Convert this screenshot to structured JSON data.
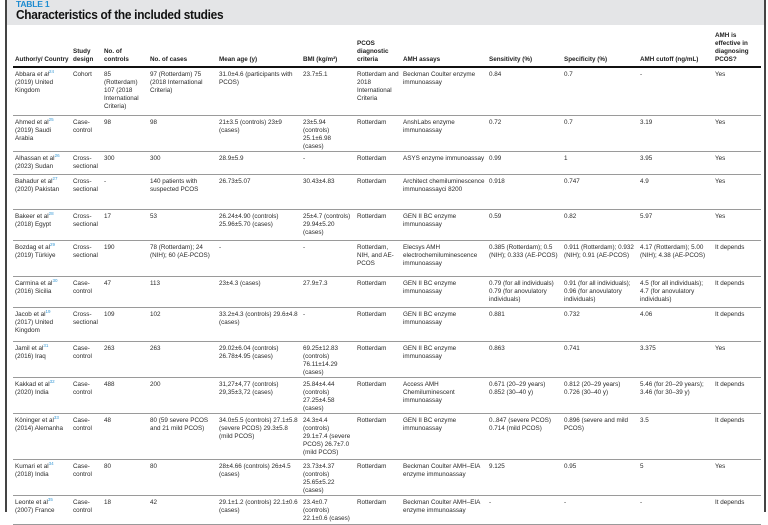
{
  "table_label": "TABLE 1",
  "title": "Characteristics of the included studies",
  "accent_color": "#1d8bd0",
  "columns": [
    "Author/y/ Country",
    "Study design",
    "No. of controls",
    "No. of cases",
    "Mean age (y)",
    "BMI (kg/m²)",
    "PCOS diagnostic criteria",
    "AMH assays",
    "Sensitivity (%)",
    "Specificity (%)",
    "AMH cutoff (ng/mL)",
    "AMH is effective in diagnosing PCOS?"
  ],
  "rows": [
    {
      "author": "Abbara",
      "etal": "et al",
      "ref": "24",
      "place": "(2019) United Kingdom",
      "design": "Cohort",
      "controls": "85 (Rotterdam) 107 (2018 International Criteria)",
      "cases": "97 (Rotterdam) 75 (2018 International Criteria)",
      "age": "31.0±4.6 (participants with PCOS)",
      "bmi": "23.7±5.1",
      "criteria": "Rotterdam and 2018 International Criteria",
      "assay": "Beckman Coulter enzyme immunoassay",
      "sens": "0.84",
      "spec": "0.7",
      "cutoff": "-",
      "effective": "Yes"
    },
    {
      "author": "Ahmed",
      "etal": "et al",
      "ref": "25",
      "place": "(2019) Saudi Arabia",
      "design": "Case-control",
      "controls": "98",
      "cases": "98",
      "age": "21±3.5 (controls) 23±9 (cases)",
      "bmi": "23±5.94 (controls) 25.1±6.98 (cases)",
      "criteria": "Rotterdam",
      "assay": "AnshLabs enzyme immunoassay",
      "sens": "0.72",
      "spec": "0.7",
      "cutoff": "3.19",
      "effective": "Yes"
    },
    {
      "author": "Alhassan",
      "etal": "et al",
      "ref": "26",
      "place": "(2023) Sudan",
      "design": "Cross-sectional",
      "controls": "300",
      "cases": "300",
      "age": "28.9±5.9",
      "bmi": "-",
      "criteria": "Rotterdam",
      "assay": "ASYS enzyme immunoassay",
      "sens": "0.99",
      "spec": "1",
      "cutoff": "3.95",
      "effective": "Yes"
    },
    {
      "author": "Bahadur",
      "etal": "et al",
      "ref": "27",
      "place": "(2020) Pakistan",
      "design": "Cross-sectional",
      "controls": "-",
      "cases": "140 patients with suspected PCOS",
      "age": "26.73±5.07",
      "bmi": "30.43±4.83",
      "criteria": "Rotterdam",
      "assay": "Architect chemiluminescence immunoassayci 8200",
      "sens": "0.918",
      "spec": "0.747",
      "cutoff": "4.9",
      "effective": "Yes"
    },
    {
      "author": "Bakeer",
      "etal": "et al",
      "ref": "28",
      "place": "(2018) Egypt",
      "design": "Cross-sectional",
      "controls": "17",
      "cases": "53",
      "age": "26.24±4.90 (controls) 25.96±5.70 (cases)",
      "bmi": "25±4.7 (controls) 29.94±5.20 (cases)",
      "criteria": "Rotterdam",
      "assay": "GEN II BC enzyme immunoassay",
      "sens": "0.59",
      "spec": "0.82",
      "cutoff": "5.97",
      "effective": "Yes"
    },
    {
      "author": "Bozdag",
      "etal": "et al",
      "ref": "29",
      "place": "(2019) Türkiye",
      "design": "Cross-sectional",
      "controls": "190",
      "cases": "78 (Rotterdam); 24 (NIH); 60 (AE-PCOS)",
      "age": "-",
      "bmi": "-",
      "criteria": "Rotterdam, NIH, and AE-PCOS",
      "assay": "Elecsys AMH electrochemiluminescence immunoassay",
      "sens": "0.385 (Rotterdam); 0.5 (NIH); 0.333 (AE-PCOS)",
      "spec": "0.911 (Rotterdam); 0.932 (NIH); 0.91 (AE-PCOS)",
      "cutoff": "4.17 (Rotterdam); 5.00 (NIH); 4.38 (AE-PCOS)",
      "effective": "It depends"
    },
    {
      "author": "Carmina",
      "etal": "et al",
      "ref": "30",
      "place": "(2016) Sicilia",
      "design": "Case-control",
      "controls": "47",
      "cases": "113",
      "age": "23±4.3 (cases)",
      "bmi": "27.9±7.3",
      "criteria": "Rotterdam",
      "assay": "GEN II BC enzyme immunoassay",
      "sens": "0.79 (for all individuals) 0.79 (for anovulatory individuals)",
      "spec": "0.91 (for all individuals); 0.96 (for anovulatory individuals)",
      "cutoff": "4.5 (for all individuals); 4.7 (for anovulatory individuals)",
      "effective": "It depends"
    },
    {
      "author": "Jacob",
      "etal": "et al",
      "ref": "19",
      "place": "(2017) United Kingdom",
      "design": "Cross-sectional",
      "controls": "109",
      "cases": "102",
      "age": "33.2±4.3 (controls) 29.6±4.8 (cases)",
      "bmi": "-",
      "criteria": "Rotterdam",
      "assay": "GEN II BC enzyme immunoassay",
      "sens": "0.881",
      "spec": "0.732",
      "cutoff": "4.06",
      "effective": "It depends"
    },
    {
      "author": "Jamil",
      "etal": "et al",
      "ref": "31",
      "place": "(2016) Iraq",
      "design": "Case-control",
      "controls": "263",
      "cases": "263",
      "age": "29.02±6.04 (controls) 26.78±4.95 (cases)",
      "bmi": "69.25±12.83 (controls) 76.11±14.29 (cases)",
      "criteria": "Rotterdam",
      "assay": "GEN II BC enzyme immunoassay",
      "sens": "0.863",
      "spec": "0.741",
      "cutoff": "3.375",
      "effective": "Yes"
    },
    {
      "author": "Kakkad",
      "etal": "et al",
      "ref": "32",
      "place": "(2020) India",
      "design": "Case-control",
      "controls": "488",
      "cases": "200",
      "age": "31,27±4,77 (controls) 29,35±3,72 (cases)",
      "bmi": "25.84±4.44 (controls) 27.25±4.58 (cases)",
      "criteria": "Rotterdam",
      "assay": "Access AMH Chemiluminescent immunoassay",
      "sens": "0.671 (20–29 years) 0.852 (30–40 y)",
      "spec": "0.812 (20–29 years) 0.726 (30–40 y)",
      "cutoff": "5.46 (for 20–29 years); 3.46 (for 30–39 y)",
      "effective": "It depends"
    },
    {
      "author": "Köninger",
      "etal": "et al",
      "ref": "33",
      "place": "(2014) Alemanha",
      "design": "Case-control",
      "controls": "48",
      "cases": "80 (59 severe PCOS and 21 mild PCOS)",
      "age": "34.0±5.5 (controls) 27.1±5.8 (severe PCOS) 29.3±5.8 (mild PCOS)",
      "bmi": "24.3±4.4 (controls) 29.1±7.4 (severe PCOS) 26.7±7.0 (mild PCOS)",
      "criteria": "Rotterdam",
      "assay": "GEN II BC enzyme immunoassay",
      "sens": "0..847 (severe PCOS) 0.714 (mild PCOS)",
      "spec": "0.896 (severe and mild PCOS)",
      "cutoff": "3.5",
      "effective": "It depends"
    },
    {
      "author": "Kumari",
      "etal": "et al",
      "ref": "34",
      "place": "(2018) India",
      "design": "Case-control",
      "controls": "80",
      "cases": "80",
      "age": "28±4.66 (controls) 26±4.5 (cases)",
      "bmi": "23.73±4.37 (controls) 25.65±5.22 (cases)",
      "criteria": "Rotterdam",
      "assay": "Beckman Coulter AMH–EIA enzyme immunoassay",
      "sens": "9.125",
      "spec": "0.95",
      "cutoff": "5",
      "effective": "Yes"
    },
    {
      "author": "Leonte",
      "etal": "et al",
      "ref": "35",
      "place": "(2007) France",
      "design": "Case-control",
      "controls": "18",
      "cases": "42",
      "age": "29.1±1.2 (controls) 22.1±0.6 (cases)",
      "bmi": "23.4±0.7 (controls) 22.1±0.6 (cases)",
      "criteria": "Rotterdam",
      "assay": "Beckman Coulter AMH–EIA enzyme immunoassay",
      "sens": "-",
      "spec": "-",
      "cutoff": "-",
      "effective": "It depends"
    }
  ]
}
